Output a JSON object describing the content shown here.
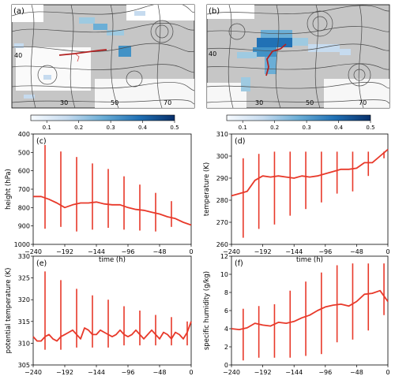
{
  "chart_data": [
    {
      "type": "map",
      "panel_label": "(a)",
      "lat_labels": [
        "40"
      ],
      "lon_labels": [
        "30",
        "50",
        "70"
      ],
      "colorbar": {
        "ticks": [
          "0.1",
          "0.2",
          "0.3",
          "0.4",
          "0.5"
        ],
        "range": [
          0.05,
          0.5
        ]
      }
    },
    {
      "type": "map",
      "panel_label": "(b)",
      "lat_labels": [
        "40"
      ],
      "lon_labels": [
        "30",
        "50",
        "70"
      ],
      "colorbar": {
        "ticks": [
          "0.1",
          "0.2",
          "0.3",
          "0.4",
          "0.5"
        ],
        "range": [
          0.05,
          0.5
        ]
      }
    },
    {
      "type": "line",
      "panel_label": "(c)",
      "xlabel": "time (h)",
      "ylabel": "height (hPa)",
      "xlim": [
        -240,
        0
      ],
      "ylim": [
        1000,
        400
      ],
      "inverted_y": true,
      "xticks": [
        "−240",
        "−192",
        "−144",
        "−96",
        "−48",
        "0"
      ],
      "yticks": [
        "400",
        "500",
        "600",
        "700",
        "800",
        "900",
        "1000"
      ],
      "line": {
        "x": [
          -240,
          -228,
          -216,
          -204,
          -192,
          -180,
          -168,
          -156,
          -144,
          -132,
          -120,
          -108,
          -96,
          -84,
          -72,
          -60,
          -48,
          -36,
          -24,
          -12,
          0
        ],
        "y": [
          740,
          740,
          755,
          775,
          800,
          785,
          775,
          775,
          770,
          780,
          785,
          785,
          800,
          810,
          815,
          825,
          835,
          850,
          860,
          880,
          895
        ]
      },
      "errorbars": [
        {
          "x": -222,
          "low": 460,
          "high": 915
        },
        {
          "x": -198,
          "low": 495,
          "high": 905
        },
        {
          "x": -174,
          "low": 525,
          "high": 930
        },
        {
          "x": -150,
          "low": 560,
          "high": 920
        },
        {
          "x": -126,
          "low": 590,
          "high": 910
        },
        {
          "x": -102,
          "low": 630,
          "high": 920
        },
        {
          "x": -78,
          "low": 675,
          "high": 925
        },
        {
          "x": -54,
          "low": 720,
          "high": 930
        },
        {
          "x": -30,
          "low": 765,
          "high": 905
        }
      ]
    },
    {
      "type": "line",
      "panel_label": "(d)",
      "xlabel": "time (h)",
      "ylabel": "temperature (K)",
      "xlim": [
        -240,
        0
      ],
      "ylim": [
        260,
        310
      ],
      "xticks": [
        "−240",
        "−192",
        "−144",
        "−96",
        "−48",
        "0"
      ],
      "yticks": [
        "260",
        "270",
        "280",
        "290",
        "300",
        "310"
      ],
      "line": {
        "x": [
          -240,
          -228,
          -216,
          -204,
          -192,
          -180,
          -168,
          -156,
          -144,
          -132,
          -120,
          -108,
          -96,
          -84,
          -72,
          -60,
          -48,
          -36,
          -24,
          -12,
          0
        ],
        "y": [
          282,
          283,
          284,
          289,
          291,
          290.5,
          291,
          290.5,
          290,
          291,
          290.5,
          291,
          292,
          293,
          294,
          294,
          294.5,
          297,
          297,
          300,
          303
        ]
      },
      "errorbars": [
        {
          "x": -222,
          "low": 263,
          "high": 299
        },
        {
          "x": -198,
          "low": 267,
          "high": 301
        },
        {
          "x": -174,
          "low": 269,
          "high": 302
        },
        {
          "x": -150,
          "low": 273,
          "high": 302
        },
        {
          "x": -126,
          "low": 276,
          "high": 302
        },
        {
          "x": -102,
          "low": 279,
          "high": 302
        },
        {
          "x": -78,
          "low": 283,
          "high": 302
        },
        {
          "x": -54,
          "low": 284,
          "high": 302
        },
        {
          "x": -30,
          "low": 291,
          "high": 302
        },
        {
          "x": -6,
          "low": 299,
          "high": 302
        }
      ]
    },
    {
      "type": "line",
      "panel_label": "(e)",
      "xlabel": "time (h)",
      "ylabel": "potential temperature (K)",
      "xlim": [
        -240,
        0
      ],
      "ylim": [
        305,
        330
      ],
      "xticks": [
        "−240",
        "−192",
        "−144",
        "−96",
        "−48",
        "0"
      ],
      "yticks": [
        "305",
        "310",
        "315",
        "320",
        "325",
        "330"
      ],
      "line": {
        "x": [
          -240,
          -234,
          -228,
          -222,
          -216,
          -210,
          -204,
          -198,
          -192,
          -186,
          -180,
          -174,
          -168,
          -162,
          -156,
          -150,
          -144,
          -138,
          -132,
          -126,
          -120,
          -114,
          -108,
          -102,
          -96,
          -90,
          -84,
          -78,
          -72,
          -66,
          -60,
          -54,
          -48,
          -42,
          -36,
          -30,
          -24,
          -18,
          -12,
          -6,
          0
        ],
        "y": [
          311.5,
          310.5,
          310.5,
          311.5,
          312,
          311,
          310.5,
          311.5,
          312,
          312.5,
          313,
          312,
          311,
          313.5,
          313,
          312,
          312,
          313,
          312.5,
          312,
          311.5,
          312,
          313,
          312,
          311.5,
          312,
          313,
          312,
          311,
          312,
          313,
          312,
          311,
          312.5,
          312,
          311,
          312.5,
          312,
          311,
          312.5,
          315
        ]
      },
      "errorbars": [
        {
          "x": -222,
          "low": 308.5,
          "high": 326.5
        },
        {
          "x": -198,
          "low": 308.5,
          "high": 324.5
        },
        {
          "x": -174,
          "low": 309,
          "high": 322.5
        },
        {
          "x": -150,
          "low": 309,
          "high": 321
        },
        {
          "x": -126,
          "low": 309,
          "high": 320
        },
        {
          "x": -102,
          "low": 309.5,
          "high": 318.5
        },
        {
          "x": -78,
          "low": 309.5,
          "high": 317.5
        },
        {
          "x": -54,
          "low": 309.5,
          "high": 316.5
        },
        {
          "x": -30,
          "low": 309.5,
          "high": 316
        },
        {
          "x": -6,
          "low": 309.5,
          "high": 315
        }
      ]
    },
    {
      "type": "line",
      "panel_label": "(f)",
      "xlabel": "time (h)",
      "ylabel": "specific humidity (g/kg)",
      "xlim": [
        -240,
        0
      ],
      "ylim": [
        0,
        12
      ],
      "xticks": [
        "−240",
        "−192",
        "−144",
        "−96",
        "−48",
        "0"
      ],
      "yticks": [
        "0",
        "2",
        "4",
        "6",
        "8",
        "10",
        "12"
      ],
      "line": {
        "x": [
          -240,
          -228,
          -216,
          -204,
          -192,
          -180,
          -168,
          -156,
          -144,
          -132,
          -120,
          -108,
          -96,
          -84,
          -72,
          -60,
          -48,
          -36,
          -24,
          -12,
          0
        ],
        "y": [
          4,
          3.9,
          4.1,
          4.6,
          4.4,
          4.3,
          4.7,
          4.6,
          4.8,
          5.2,
          5.5,
          6,
          6.4,
          6.6,
          6.7,
          6.5,
          7,
          7.8,
          7.9,
          8.2,
          7
        ]
      },
      "errorbars": [
        {
          "x": -222,
          "low": 0.5,
          "high": 6.2
        },
        {
          "x": -198,
          "low": 0.8,
          "high": 6.5
        },
        {
          "x": -174,
          "low": 0.8,
          "high": 6.7
        },
        {
          "x": -150,
          "low": 0.8,
          "high": 8.2
        },
        {
          "x": -126,
          "low": 1.0,
          "high": 9.2
        },
        {
          "x": -102,
          "low": 1.2,
          "high": 10.2
        },
        {
          "x": -78,
          "low": 2.5,
          "high": 11.0
        },
        {
          "x": -54,
          "low": 2.8,
          "high": 11.2
        },
        {
          "x": -30,
          "low": 3.8,
          "high": 11.2
        },
        {
          "x": -6,
          "low": 5.5,
          "high": 11.2
        }
      ]
    }
  ],
  "colors": {
    "line": "#e8392a",
    "map_bg": "#c6c6c6",
    "stream": "#4a4a4a",
    "trajectory": "#b22222"
  }
}
